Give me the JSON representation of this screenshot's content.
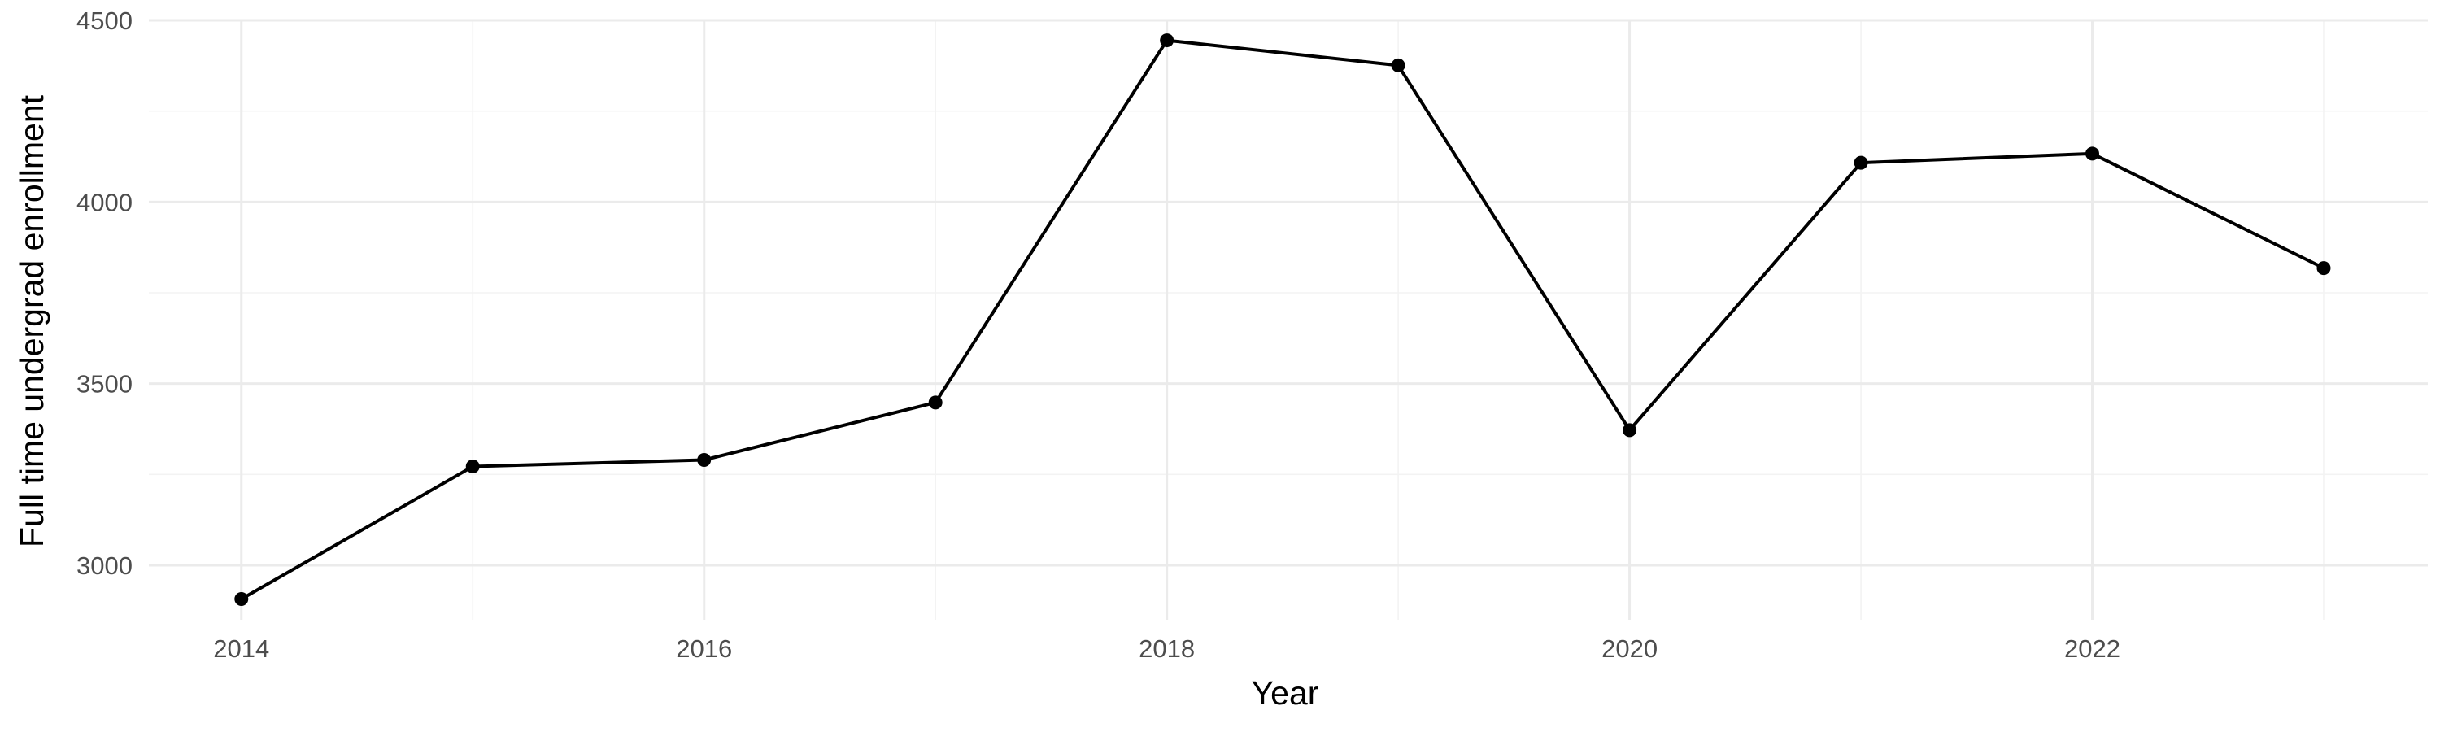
{
  "chart_data": {
    "type": "line",
    "title": "",
    "xlabel": "Year",
    "ylabel": "Full time undergrad enrollment",
    "xlim": [
      2013.6,
      2023.45
    ],
    "ylim": [
      2850,
      4500
    ],
    "x_ticks": [
      2014,
      2016,
      2018,
      2020,
      2022
    ],
    "y_ticks": [
      3000,
      3500,
      4000,
      4500
    ],
    "grid": true,
    "legend": "none",
    "series": [
      {
        "color": "#000000",
        "x": [
          2014,
          2015,
          2016,
          2017,
          2018,
          2019,
          2020,
          2021,
          2022,
          2023
        ],
        "y": [
          2907,
          3272,
          3290,
          3448,
          4445,
          4376,
          3372,
          4108,
          4133,
          3818
        ]
      }
    ]
  }
}
